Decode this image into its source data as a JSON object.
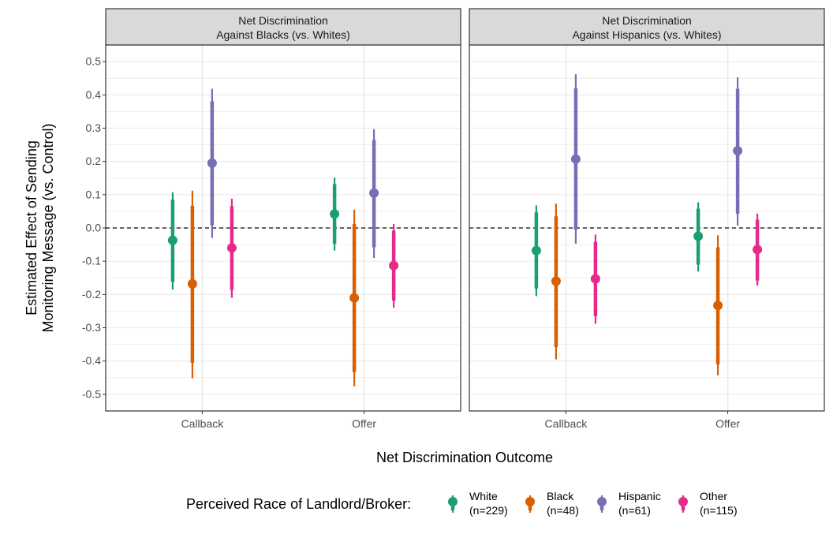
{
  "chart_data": {
    "type": "scatter",
    "subtype": "point-range (coefficient plot) with inner and outer intervals, faceted",
    "panels": [
      {
        "title_line1": "Net Discrimination",
        "title_line2": "Against Blacks (vs. Whites)",
        "categories": [
          "Callback",
          "Offer"
        ],
        "series": [
          {
            "name": "White",
            "label_line1": "White",
            "label_line2": "(n=229)",
            "color": "#1b9e77",
            "points": [
              {
                "x": "Callback",
                "est": -0.037,
                "inner": [
                  -0.162,
                  0.085
                ],
                "outer": [
                  -0.185,
                  0.107
                ]
              },
              {
                "x": "Offer",
                "est": 0.042,
                "inner": [
                  -0.047,
                  0.132
                ],
                "outer": [
                  -0.068,
                  0.151
                ]
              }
            ]
          },
          {
            "name": "Black",
            "label_line1": "Black",
            "label_line2": "(n=48)",
            "color": "#d95f02",
            "points": [
              {
                "x": "Callback",
                "est": -0.168,
                "inner": [
                  -0.405,
                  0.067
                ],
                "outer": [
                  -0.452,
                  0.112
                ]
              },
              {
                "x": "Offer",
                "est": -0.21,
                "inner": [
                  -0.433,
                  0.012
                ],
                "outer": [
                  -0.476,
                  0.055
                ]
              }
            ]
          },
          {
            "name": "Hispanic",
            "label_line1": "Hispanic",
            "label_line2": "(n=61)",
            "color": "#7570b3",
            "points": [
              {
                "x": "Callback",
                "est": 0.195,
                "inner": [
                  0.008,
                  0.381
                ],
                "outer": [
                  -0.03,
                  0.418
                ]
              },
              {
                "x": "Offer",
                "est": 0.105,
                "inner": [
                  -0.058,
                  0.265
                ],
                "outer": [
                  -0.09,
                  0.297
                ]
              }
            ]
          },
          {
            "name": "Other",
            "label_line1": "Other",
            "label_line2": "(n=115)",
            "color": "#e7298a",
            "points": [
              {
                "x": "Callback",
                "est": -0.06,
                "inner": [
                  -0.186,
                  0.065
                ],
                "outer": [
                  -0.21,
                  0.088
                ]
              },
              {
                "x": "Offer",
                "est": -0.113,
                "inner": [
                  -0.218,
                  -0.008
                ],
                "outer": [
                  -0.24,
                  0.012
                ]
              }
            ]
          }
        ]
      },
      {
        "title_line1": "Net Discrimination",
        "title_line2": "Against Hispanics (vs. Whites)",
        "categories": [
          "Callback",
          "Offer"
        ],
        "series": [
          {
            "name": "White",
            "label_line1": "White",
            "label_line2": "(n=229)",
            "color": "#1b9e77",
            "points": [
              {
                "x": "Callback",
                "est": -0.068,
                "inner": [
                  -0.182,
                  0.047
                ],
                "outer": [
                  -0.205,
                  0.068
                ]
              },
              {
                "x": "Offer",
                "est": -0.025,
                "inner": [
                  -0.11,
                  0.058
                ],
                "outer": [
                  -0.131,
                  0.077
                ]
              }
            ]
          },
          {
            "name": "Black",
            "label_line1": "Black",
            "label_line2": "(n=48)",
            "color": "#d95f02",
            "points": [
              {
                "x": "Callback",
                "est": -0.16,
                "inner": [
                  -0.358,
                  0.035
                ],
                "outer": [
                  -0.395,
                  0.073
                ]
              },
              {
                "x": "Offer",
                "est": -0.233,
                "inner": [
                  -0.41,
                  -0.058
                ],
                "outer": [
                  -0.443,
                  -0.022
                ]
              }
            ]
          },
          {
            "name": "Hispanic",
            "label_line1": "Hispanic",
            "label_line2": "(n=61)",
            "color": "#7570b3",
            "points": [
              {
                "x": "Callback",
                "est": 0.207,
                "inner": [
                  -0.005,
                  0.42
                ],
                "outer": [
                  -0.047,
                  0.462
                ]
              },
              {
                "x": "Offer",
                "est": 0.232,
                "inner": [
                  0.043,
                  0.418
                ],
                "outer": [
                  0.007,
                  0.453
                ]
              }
            ]
          },
          {
            "name": "Other",
            "label_line1": "Other",
            "label_line2": "(n=115)",
            "color": "#e7298a",
            "points": [
              {
                "x": "Callback",
                "est": -0.153,
                "inner": [
                  -0.265,
                  -0.042
                ],
                "outer": [
                  -0.288,
                  -0.02
                ]
              },
              {
                "x": "Offer",
                "est": -0.065,
                "inner": [
                  -0.158,
                  0.025
                ],
                "outer": [
                  -0.173,
                  0.043
                ]
              }
            ]
          }
        ]
      }
    ],
    "xlabel": "Net Discrimination Outcome",
    "ylabel_line1": "Estimated Effect of Sending",
    "ylabel_line2": "Monitoring Message (vs. Control)",
    "ylim": [
      -0.55,
      0.55
    ],
    "yticks": [
      -0.5,
      -0.4,
      -0.3,
      -0.2,
      -0.1,
      0.0,
      0.1,
      0.2,
      0.3,
      0.4,
      0.5
    ],
    "ytick_labels": [
      "-0.5",
      "-0.4",
      "-0.3",
      "-0.2",
      "-0.1",
      "0.0",
      "0.1",
      "0.2",
      "0.3",
      "0.4",
      "0.5"
    ],
    "reference_line": 0,
    "grid": true,
    "legend": {
      "title": "Perceived Race of Landlord/Broker:",
      "position": "bottom"
    }
  }
}
